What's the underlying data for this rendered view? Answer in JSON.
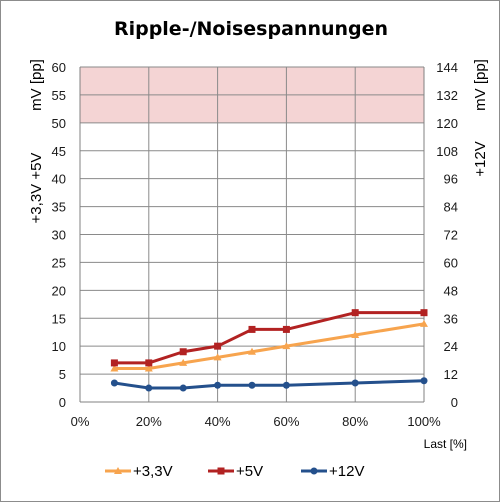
{
  "chart_data": {
    "type": "line",
    "title": "Ripple-/Noisespannungen",
    "xlabel": "Last [%]",
    "ylabel_left_lines": [
      "+3,3V  +5V",
      "mV [pp]"
    ],
    "ylabel_right_lines": [
      "+12V",
      "mV [pp]"
    ],
    "xlim": [
      0,
      100
    ],
    "ylim_left": [
      0,
      60
    ],
    "ylim_right": [
      0,
      144
    ],
    "x_ticks": [
      "0%",
      "20%",
      "40%",
      "60%",
      "80%",
      "100%"
    ],
    "x_tick_values": [
      0,
      20,
      40,
      60,
      80,
      100
    ],
    "y_left_ticks": [
      "0",
      "5",
      "10",
      "15",
      "20",
      "25",
      "30",
      "35",
      "40",
      "45",
      "50",
      "55",
      "60"
    ],
    "y_left_tick_values": [
      0,
      5,
      10,
      15,
      20,
      25,
      30,
      35,
      40,
      45,
      50,
      55,
      60
    ],
    "y_right_ticks": [
      "0",
      "12",
      "24",
      "36",
      "48",
      "60",
      "72",
      "84",
      "96",
      "108",
      "120",
      "132",
      "144"
    ],
    "y_right_tick_values": [
      0,
      12,
      24,
      36,
      48,
      60,
      72,
      84,
      96,
      108,
      120,
      132,
      144
    ],
    "limit_band": {
      "from": 50,
      "to": 60,
      "color": "#f4d4d4"
    },
    "grid": true,
    "legend_position": "bottom",
    "series": [
      {
        "name": "+3,3V",
        "axis": "left",
        "color": "#f7a44e",
        "marker": "triangle",
        "x": [
          10,
          20,
          30,
          40,
          50,
          60,
          80,
          100
        ],
        "y": [
          6,
          6,
          7,
          8,
          9,
          10,
          12,
          14
        ]
      },
      {
        "name": "+5V",
        "axis": "left",
        "color": "#b22222",
        "marker": "square",
        "x": [
          10,
          20,
          30,
          40,
          50,
          60,
          80,
          100
        ],
        "y": [
          7,
          7,
          9,
          10,
          13,
          13,
          16,
          16
        ]
      },
      {
        "name": "+12V",
        "axis": "left",
        "color": "#24508c",
        "marker": "circle",
        "x": [
          10,
          20,
          30,
          40,
          50,
          60,
          80,
          100
        ],
        "y": [
          3.4,
          2.5,
          2.5,
          3,
          3,
          3,
          3.4,
          3.8
        ]
      }
    ]
  }
}
